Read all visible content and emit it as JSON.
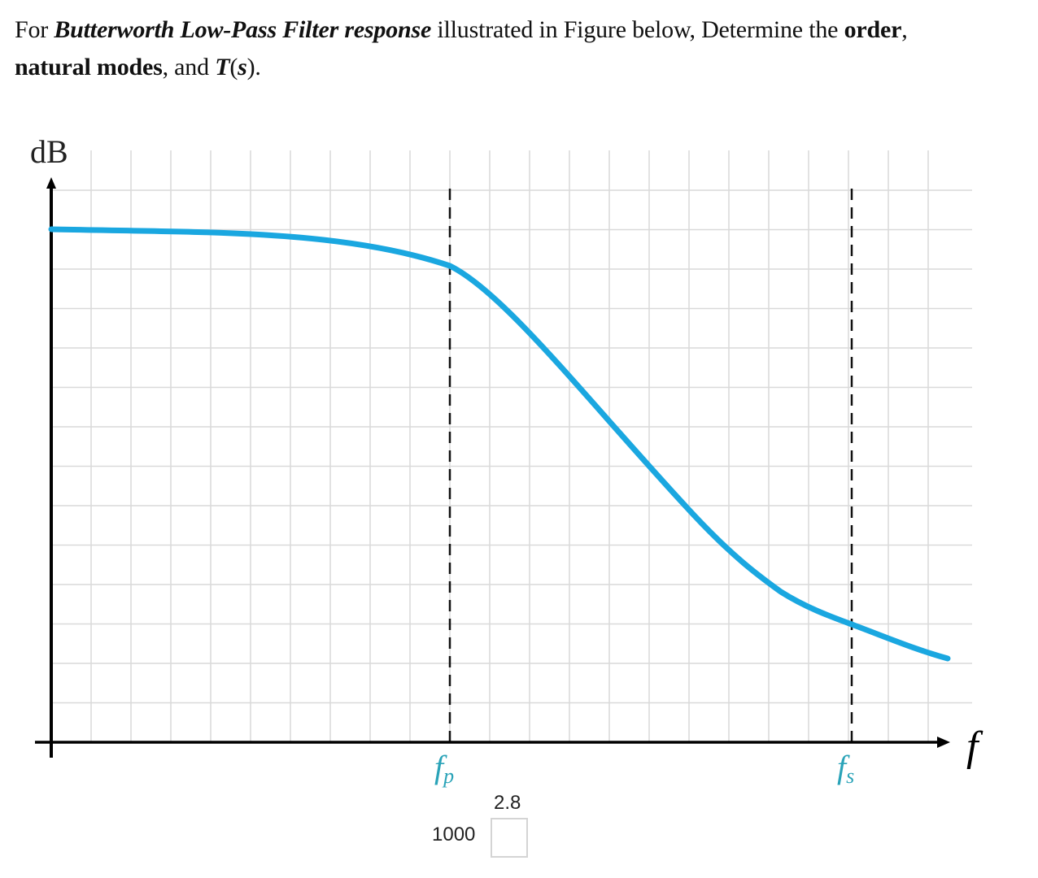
{
  "question": {
    "t1": "For ",
    "t2": "Butterworth Low-Pass Filter response",
    "t3": " illustrated in Figure below, Determine the ",
    "t4": "order",
    "t5": ",",
    "t6": "natural modes",
    "t7": ", and ",
    "t8": "T",
    "t9": "(",
    "t10": "s",
    "t11": ")."
  },
  "chart_data": {
    "type": "line",
    "ylabel": "dB",
    "xlabel": "f",
    "markers": [
      {
        "name": "fp",
        "label_main": "f",
        "label_sub": "p"
      },
      {
        "name": "fs",
        "label_main": "f",
        "label_sub": "s"
      }
    ],
    "curve_color": "#1aa7e0",
    "marker_label_color": "#2aa3b8",
    "grid": true
  },
  "inputs": {
    "value_1000": "1000",
    "value_2_8": "2.8",
    "answer_box_value": ""
  }
}
